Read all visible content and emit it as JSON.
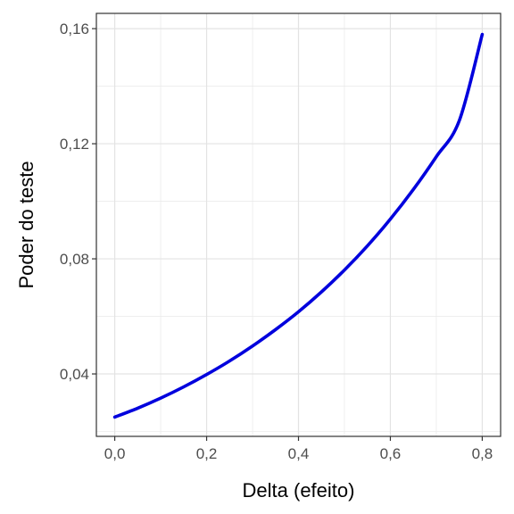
{
  "chart_data": {
    "type": "line",
    "title": "",
    "xlabel": "Delta (efeito)",
    "ylabel": "Poder do teste",
    "xlim": [
      -0.04,
      0.84
    ],
    "ylim": [
      0.0183,
      0.1653
    ],
    "x_ticks": [
      0.0,
      0.2,
      0.4,
      0.6,
      0.8
    ],
    "x_tick_labels": [
      "0,0",
      "0,2",
      "0,4",
      "0,6",
      "0,8"
    ],
    "y_ticks": [
      0.04,
      0.08,
      0.12,
      0.16
    ],
    "y_tick_labels": [
      "0,04",
      "0,08",
      "0,12",
      "0,16"
    ],
    "grid": true,
    "legend": "none",
    "series": [
      {
        "color": "#0000dd",
        "x": [
          0.0,
          0.05,
          0.1,
          0.15,
          0.2,
          0.25,
          0.3,
          0.35,
          0.4,
          0.45,
          0.5,
          0.55,
          0.6,
          0.65,
          0.7,
          0.75,
          0.8
        ],
        "y": [
          0.025,
          0.0281,
          0.0316,
          0.0355,
          0.0398,
          0.0445,
          0.0497,
          0.0554,
          0.0616,
          0.0685,
          0.0761,
          0.0845,
          0.0938,
          0.1041,
          0.1155,
          0.128,
          0.158
        ]
      }
    ]
  }
}
